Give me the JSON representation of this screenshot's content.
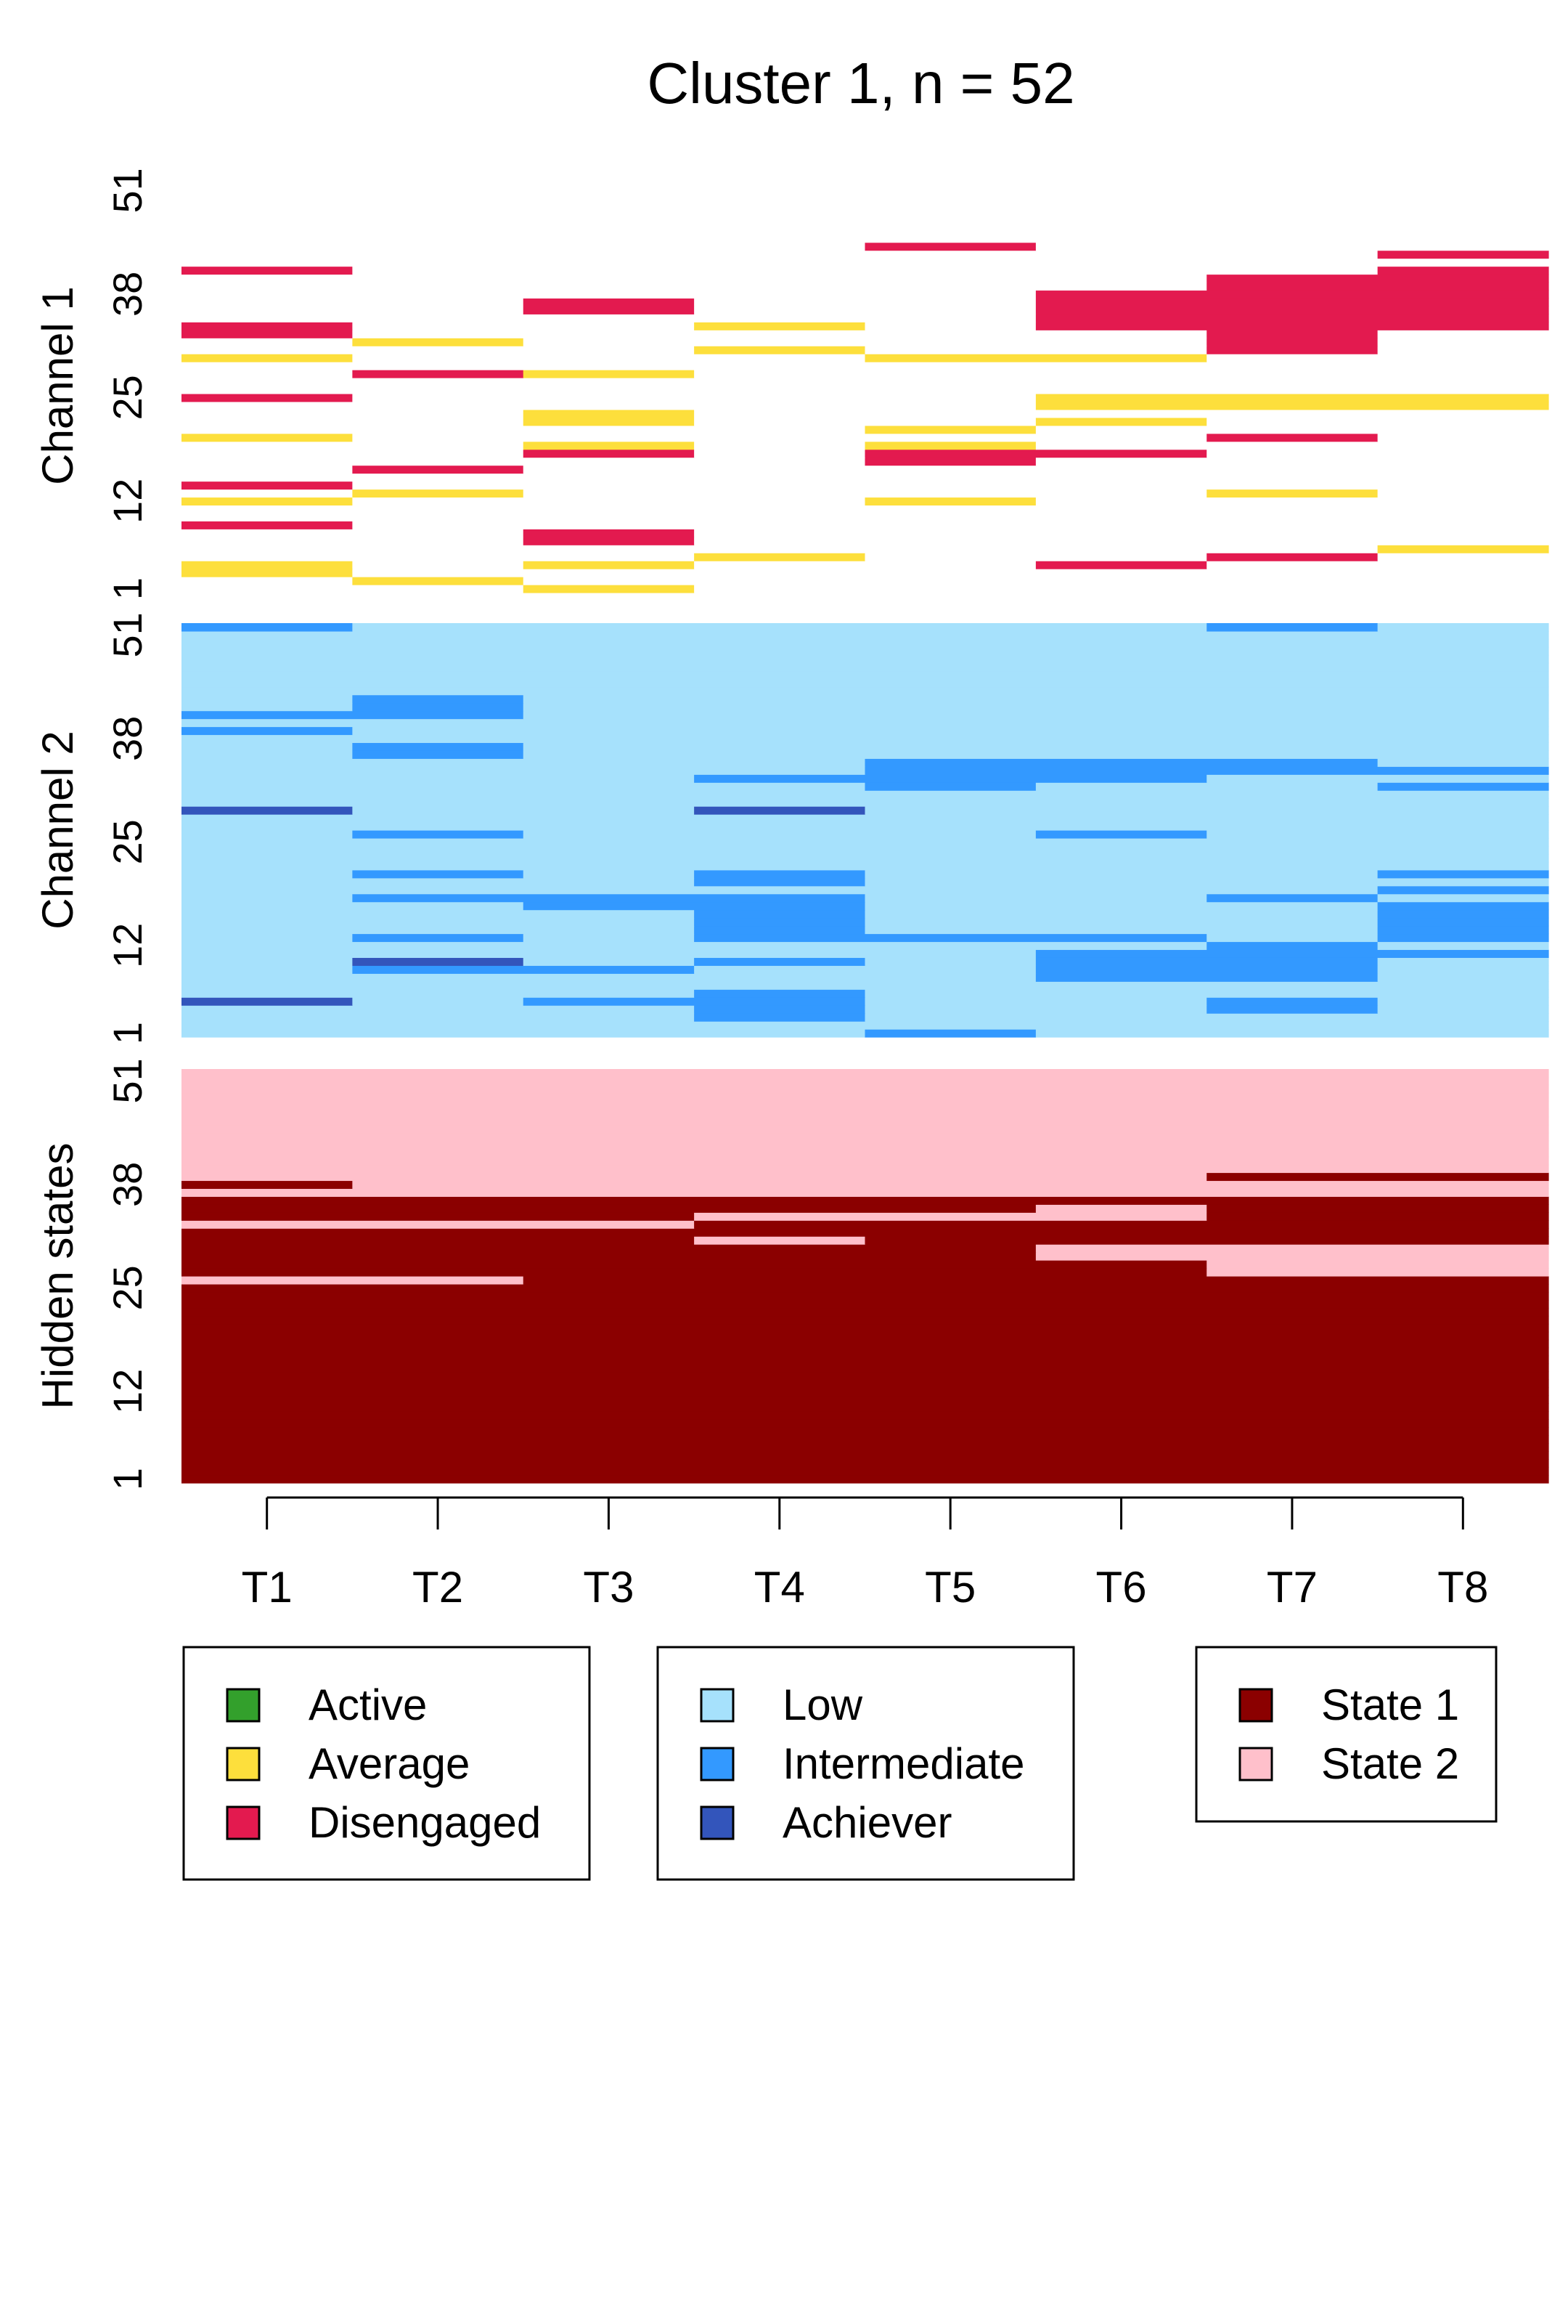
{
  "chart_data": {
    "type": "heatmap",
    "title": "Cluster 1, n = 52",
    "x": [
      "T1",
      "T2",
      "T3",
      "T4",
      "T5",
      "T6",
      "T7",
      "T8"
    ],
    "n_sequences": 52,
    "y_tick_labels": [
      "1",
      "12",
      "25",
      "38",
      "51"
    ],
    "channels": [
      {
        "name": "Channel 1",
        "states": [
          "Active",
          "Average",
          "Disengaged"
        ],
        "colors": {
          "Active": "#33a02c",
          "Average": "#fddf3c",
          "Disengaged": "#e31a4f"
        },
        "sequences": [
          "VVAVVVVV",
          "VAVVVVVV",
          "AVVVVVVV",
          "AVAVVDVV",
          "VVVAVVDV",
          "VVVVVVVA",
          "VVDVVVVV",
          "VVDVVVVV",
          "DVVVVVVV",
          "VVVVVVVV",
          "VVVVVVVV",
          "AVVVAVVV",
          "VAVVVVAV",
          "DVVVVVVV",
          "VVVVVVVV",
          "VDVVVVVV",
          "VVVVDVVV",
          "VVDVDDVV",
          "VVAVAVVV",
          "AVVVVVDV",
          "VVVVAVVV",
          "VVAVVAVV",
          "VVAVVVVV",
          "VVVVVAAA",
          "DVVVVAAA",
          "VVVVVVVV",
          "VVVVVVVV",
          "VDAVVVVV",
          "VVVVVVVV",
          "AVVVAAVV",
          "VVVAVVDV",
          "VAVVVVDV",
          "DVVVVVDV",
          "DVVAVDDD",
          "VVVVVDDD",
          "VVDVVDDD",
          "VVDVVDDD",
          "VVVVVDDD",
          "VVVVVVDD",
          "VVVVVVDD",
          "DVVVVVVD",
          "VVVVVVVV",
          "VVVVVVVD",
          "VVVVDVVV",
          "VVVVVVVV",
          "VVVVVVVV",
          "VVVVVVVV",
          "VVVVVVVV",
          "VVVVVVVV",
          "VVVVVVVV",
          "VVVVVVVV",
          "VVVVVVVV"
        ]
      },
      {
        "name": "Channel 2",
        "states": [
          "Low",
          "Intermediate",
          "Achiever"
        ],
        "colors": {
          "Low": "#a6e1fc",
          "Intermediate": "#3399ff",
          "Achiever": "#3355bb"
        },
        "sequences": [
          "LLLLILLL",
          "LLLLLLLL",
          "LLLILLLL",
          "LLLILLIL",
          "ALIILLIL",
          "LLLILLLL",
          "LLLLLLLL",
          "LLLLLIIL",
          "LIILLIIL",
          "LALILIIL",
          "LLLLLIII",
          "LLLLLLIL",
          "LILIIILI",
          "LLLILLLI",
          "LLLILLLI",
          "LLLILLLI",
          "LLIILLLI",
          "LIIILLIL",
          "LLLLLLLI",
          "LLLILLLL",
          "LILILLLI",
          "LLLLLLLL",
          "LLLLLLLL",
          "LLLLLLLL",
          "LLLLLLLL",
          "LILLLILL",
          "LLLLLLLL",
          "LLLLLLLL",
          "ALLALLLL",
          "LLLLLLLL",
          "LLLLLLLL",
          "LLLLILLI",
          "LLLIIILL",
          "LLLLIIII",
          "LLLLIIIL",
          "LILLLLLL",
          "LILLLLLL",
          "LLLLLLLL",
          "ILLLLLLL",
          "LLLLLLLL",
          "IILLLLLL",
          "LILLLLLL",
          "LILLLLLL",
          "LLLLLLLL",
          "LLLLLLLL",
          "LLLLLLLL",
          "LLLLLLLL",
          "LLLLLLLL",
          "LLLLLLLL",
          "LLLLLLLL",
          "LLLLLLLL",
          "ILLLLLIL"
        ]
      },
      {
        "name": "Hidden states",
        "states": [
          "State 1",
          "State 2"
        ],
        "colors": {
          "State 1": "#8b0000",
          "State 2": "#ffc0cb"
        },
        "sequences": [
          "11111111",
          "11111111",
          "11111111",
          "11111111",
          "11111111",
          "11111111",
          "11111111",
          "11111111",
          "11111111",
          "11111111",
          "11111111",
          "11111111",
          "11111111",
          "11111111",
          "11111111",
          "11111111",
          "11111111",
          "11111111",
          "11111111",
          "11111111",
          "11111111",
          "11111111",
          "11111111",
          "11111111",
          "11111111",
          "22111111",
          "11111122",
          "11111122",
          "11111222",
          "11111222",
          "11121111",
          "11111111",
          "22211111",
          "11122211",
          "11111211",
          "11111111",
          "22222222",
          "12222222",
          "22222211",
          "22222222",
          "22222222",
          "22222222",
          "22222222",
          "22222222",
          "22222222",
          "22222222",
          "22222222",
          "22222222",
          "22222222",
          "22222222",
          "22222222",
          "22222222"
        ]
      }
    ],
    "legends": [
      {
        "entries": [
          {
            "label": "Active",
            "color": "#33a02c"
          },
          {
            "label": "Average",
            "color": "#fddf3c"
          },
          {
            "label": "Disengaged",
            "color": "#e31a4f"
          }
        ]
      },
      {
        "entries": [
          {
            "label": "Low",
            "color": "#a6e1fc"
          },
          {
            "label": "Intermediate",
            "color": "#3399ff"
          },
          {
            "label": "Achiever",
            "color": "#3355bb"
          }
        ]
      },
      {
        "entries": [
          {
            "label": "State 1",
            "color": "#8b0000"
          },
          {
            "label": "State 2",
            "color": "#ffc0cb"
          }
        ]
      }
    ]
  }
}
